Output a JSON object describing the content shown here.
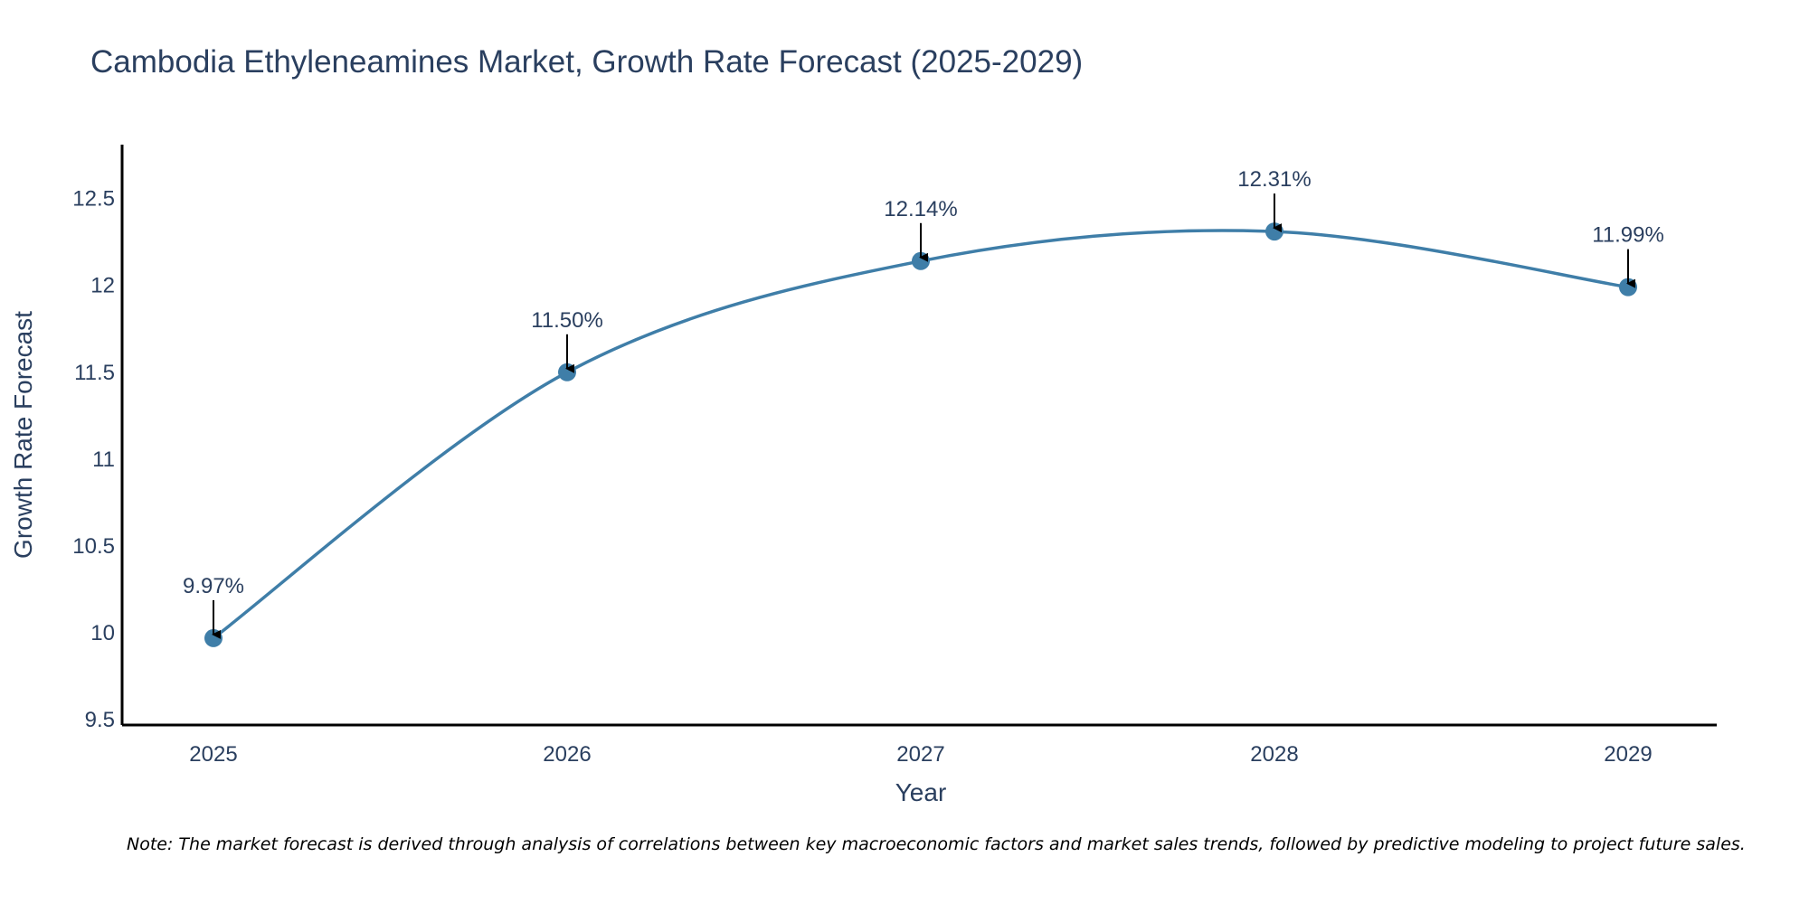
{
  "chart_data": {
    "type": "line",
    "title": "Cambodia Ethyleneamines Market, Growth Rate Forecast (2025-2029)",
    "xlabel": "Year",
    "ylabel": "Growth Rate Forecast",
    "categories": [
      "2025",
      "2026",
      "2027",
      "2028",
      "2029"
    ],
    "series": [
      {
        "name": "Growth Rate Forecast",
        "values": [
          9.97,
          11.5,
          12.14,
          12.31,
          11.99
        ],
        "labels": [
          "9.97%",
          "11.50%",
          "12.14%",
          "12.31%",
          "11.99%"
        ]
      }
    ],
    "ylim": [
      9.47,
      12.81
    ],
    "yticks": [
      9.5,
      10,
      10.5,
      11,
      11.5,
      12,
      12.5
    ],
    "ytick_labels": [
      "9.5",
      "10",
      "10.5",
      "11",
      "11.5",
      "12",
      "12.5"
    ],
    "grid": false,
    "line_color": "#3f7ea8",
    "marker_color": "#3f7ea8",
    "note": "Note: The market forecast is derived through analysis of correlations between key macroeconomic factors and market sales trends, followed by predictive modeling to project future sales."
  }
}
